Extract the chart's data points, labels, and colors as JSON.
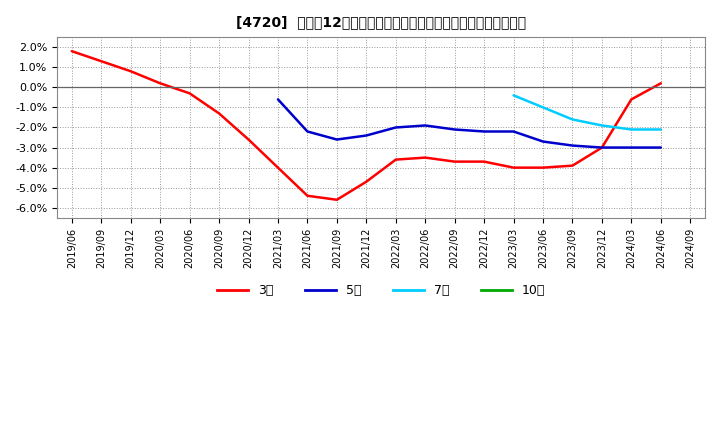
{
  "title": "[4720]  売上高12か月移動合計の対前年同期増減率の平均値の推移",
  "background_color": "#ffffff",
  "plot_bg_color": "#ffffff",
  "grid_color": "#999999",
  "ylim": [
    -0.065,
    0.025
  ],
  "yticks": [
    -0.06,
    -0.05,
    -0.04,
    -0.03,
    -0.02,
    -0.01,
    0.0,
    0.01,
    0.02
  ],
  "series": {
    "3year": {
      "color": "#ff0000",
      "label": "3年",
      "x": [
        "2019/06",
        "2019/09",
        "2019/12",
        "2020/03",
        "2020/06",
        "2020/09",
        "2020/12",
        "2021/03",
        "2021/06",
        "2021/09",
        "2021/12",
        "2022/03",
        "2022/06",
        "2022/09",
        "2022/12",
        "2023/03",
        "2023/06",
        "2023/09",
        "2023/12",
        "2024/03",
        "2024/06"
      ],
      "y": [
        0.018,
        0.013,
        0.008,
        0.002,
        -0.003,
        -0.013,
        -0.026,
        -0.04,
        -0.054,
        -0.056,
        -0.047,
        -0.036,
        -0.035,
        -0.037,
        -0.037,
        -0.04,
        -0.04,
        -0.039,
        -0.03,
        -0.006,
        0.002
      ]
    },
    "5year": {
      "color": "#0000cc",
      "label": "5年",
      "x": [
        "2021/03",
        "2021/06",
        "2021/09",
        "2021/12",
        "2022/03",
        "2022/06",
        "2022/09",
        "2022/12",
        "2023/03",
        "2023/06",
        "2023/09",
        "2023/12",
        "2024/03",
        "2024/06"
      ],
      "y": [
        -0.006,
        -0.022,
        -0.026,
        -0.024,
        -0.02,
        -0.019,
        -0.021,
        -0.022,
        -0.022,
        -0.027,
        -0.029,
        -0.03,
        -0.03,
        -0.03
      ]
    },
    "7year": {
      "color": "#00ccff",
      "label": "7年",
      "x": [
        "2023/03",
        "2023/06",
        "2023/09",
        "2023/12",
        "2024/03",
        "2024/06"
      ],
      "y": [
        -0.004,
        -0.01,
        -0.016,
        -0.019,
        -0.021,
        -0.021
      ]
    },
    "10year": {
      "color": "#00aa00",
      "label": "10年",
      "x": [],
      "y": []
    }
  },
  "xtick_labels": [
    "2019/06",
    "2019/09",
    "2019/12",
    "2020/03",
    "2020/06",
    "2020/09",
    "2020/12",
    "2021/03",
    "2021/06",
    "2021/09",
    "2021/12",
    "2022/03",
    "2022/06",
    "2022/09",
    "2022/12",
    "2023/03",
    "2023/06",
    "2023/09",
    "2023/12",
    "2024/03",
    "2024/06",
    "2024/09"
  ],
  "legend_labels": [
    "3年",
    "5年",
    "7年",
    "10年"
  ],
  "legend_colors": [
    "#ff0000",
    "#0000cc",
    "#00ccff",
    "#00aa00"
  ]
}
